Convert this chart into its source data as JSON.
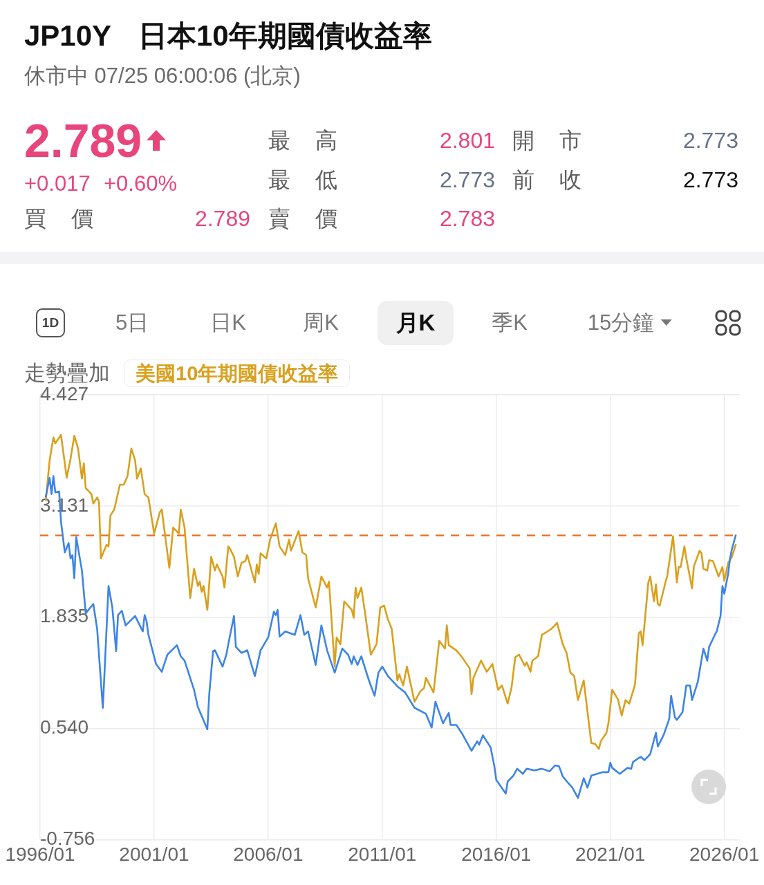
{
  "chart_data": [
    {
      "type": "other",
      "title": "JP10Y 日本10年期國債收益率",
      "subtitle": "休市中 07/25 06:00:06 (北京)",
      "annotations": [
        "2.789",
        "最 高",
        "2.801",
        "開 市",
        "2.773",
        "+0.017",
        "+0.60%",
        "最 低",
        "2.773",
        "前 收",
        "2.773",
        "買 價",
        "2.789",
        "賣 價",
        "2.783"
      ]
    },
    {
      "type": "line",
      "annotations": [
        "1D",
        "5日",
        "日K",
        "周K",
        "月K",
        "季K",
        "15分鐘"
      ],
      "legend_title": "走勢疊加",
      "legend": "top left",
      "grid": true,
      "marker": "none",
      "xlim": [
        "1996-01",
        "2026-09"
      ],
      "xticks": [
        {
          "value": "1996-01",
          "label": "1996/01"
        },
        {
          "value": "2001-01",
          "label": "2001/01"
        },
        {
          "value": "2006-01",
          "label": "2006/01"
        },
        {
          "value": "2011-01",
          "label": "2011/01"
        },
        {
          "value": "2016-01",
          "label": "2016/01"
        },
        {
          "value": "2021-01",
          "label": "2021/01"
        },
        {
          "value": "2026-01",
          "label": "2026/01"
        }
      ],
      "ylim": [
        -0.756,
        4.427
      ],
      "yticks": [
        -0.756,
        {
          "value": 0.54,
          "label": "0.540"
        },
        1.835,
        3.131,
        4.427
      ],
      "ref_lines": [
        {
          "axis": "y",
          "value": 2.789,
          "color": "#ec6d22",
          "line_style": "dashed"
        }
      ],
      "series": [
        {
          "color": "#3d84e6",
          "x": [
            "1996-04",
            "1996-06",
            "1996-07",
            "1996-08",
            "1996-09",
            "1996-11",
            "1996-12",
            "1997-02",
            "1997-04",
            "1997-05",
            "1997-06",
            "1997-07",
            "1997-08",
            "1997-11",
            "1998-01",
            "1998-05",
            "1998-07",
            "1998-10",
            "1998-11",
            "1999-01",
            "1999-03",
            "1999-05",
            "1999-06",
            "1999-08",
            "1999-10",
            "2000-03",
            "2000-07",
            "2000-08",
            "2000-09",
            "2000-10",
            "2001-02",
            "2001-05",
            "2001-08",
            "2002-01",
            "2002-03",
            "2002-05",
            "2002-10",
            "2002-12",
            "2003-05",
            "2003-06",
            "2003-08",
            "2003-09",
            "2004-01",
            "2004-03",
            "2004-04",
            "2004-07",
            "2004-08",
            "2004-11",
            "2005-02",
            "2005-06",
            "2005-09",
            "2006-01",
            "2006-04",
            "2006-05",
            "2006-06",
            "2006-07",
            "2006-10",
            "2007-03",
            "2007-06",
            "2007-08",
            "2007-10",
            "2008-02",
            "2008-05",
            "2008-08",
            "2008-12",
            "2009-04",
            "2009-07",
            "2009-09",
            "2009-10",
            "2009-12",
            "2010-02",
            "2010-06",
            "2010-09",
            "2010-11",
            "2011-01",
            "2011-04",
            "2011-09",
            "2012-01",
            "2012-06",
            "2012-12",
            "2013-03",
            "2013-05",
            "2013-09",
            "2013-12",
            "2014-01",
            "2014-04",
            "2014-07",
            "2014-12",
            "2015-03",
            "2015-04",
            "2015-06",
            "2015-10",
            "2015-12",
            "2016-01",
            "2016-06",
            "2016-07",
            "2016-10",
            "2016-12",
            "2017-03",
            "2017-05",
            "2017-09",
            "2018-01",
            "2018-05",
            "2018-08",
            "2018-10",
            "2018-12",
            "2019-03",
            "2019-05",
            "2019-08",
            "2019-11",
            "2020-01",
            "2020-03",
            "2020-06",
            "2020-09",
            "2020-12",
            "2021-01",
            "2021-02",
            "2021-06",
            "2021-10",
            "2021-12",
            "2022-01",
            "2022-05",
            "2022-07",
            "2022-10",
            "2023-01",
            "2023-02",
            "2023-05",
            "2023-08",
            "2023-09",
            "2023-11",
            "2023-12",
            "2024-03",
            "2024-05",
            "2024-07",
            "2024-08",
            "2024-11",
            "2025-02",
            "2025-04",
            "2025-05",
            "2025-08",
            "2025-09",
            "2025-11",
            "2025-12",
            "2026-01",
            "2026-03",
            "2026-04",
            "2026-05",
            "2026-07"
          ],
          "values": [
            3.24,
            3.46,
            3.27,
            3.48,
            3.29,
            3.3,
            2.95,
            2.59,
            2.7,
            2.52,
            2.56,
            2.29,
            2.77,
            2.38,
            1.88,
            1.99,
            1.7,
            0.78,
            1.24,
            2.2,
            1.95,
            1.44,
            1.86,
            1.91,
            1.74,
            1.85,
            1.67,
            1.86,
            1.79,
            1.63,
            1.29,
            1.2,
            1.4,
            1.51,
            1.38,
            1.33,
            0.99,
            0.79,
            0.53,
            0.94,
            1.44,
            1.45,
            1.26,
            1.4,
            1.52,
            1.85,
            1.49,
            1.42,
            1.45,
            1.15,
            1.45,
            1.6,
            1.9,
            1.86,
            1.92,
            1.61,
            1.67,
            1.63,
            1.86,
            1.63,
            1.67,
            1.28,
            1.74,
            1.45,
            1.19,
            1.47,
            1.4,
            1.29,
            1.38,
            1.28,
            1.38,
            1.1,
            0.92,
            1.19,
            1.26,
            1.15,
            1.03,
            0.96,
            0.78,
            0.71,
            0.55,
            0.85,
            0.6,
            0.72,
            0.58,
            0.58,
            0.48,
            0.28,
            0.39,
            0.35,
            0.46,
            0.32,
            0.1,
            -0.06,
            -0.22,
            -0.08,
            -0.01,
            0.07,
            0.01,
            0.07,
            0.05,
            0.07,
            0.04,
            0.11,
            0.1,
            -0.02,
            -0.1,
            -0.15,
            -0.27,
            -0.04,
            -0.15,
            -0.01,
            0.01,
            0.03,
            0.03,
            0.14,
            0.08,
            0.01,
            0.08,
            0.07,
            0.15,
            0.21,
            0.17,
            0.24,
            0.49,
            0.33,
            0.46,
            0.65,
            0.92,
            0.67,
            0.64,
            0.73,
            1.04,
            1.04,
            0.87,
            1.08,
            1.47,
            1.33,
            1.49,
            1.63,
            1.67,
            1.85,
            2.2,
            2.11,
            2.34,
            2.52,
            2.63,
            2.79
          ]
        },
        {
          "name": "美國10年期國債收益率",
          "color": "#d9a01e",
          "x": [
            "1996-04",
            "1996-06",
            "1996-08",
            "1996-09",
            "1996-12",
            "1997-03",
            "1997-05",
            "1997-07",
            "1997-09",
            "1997-11",
            "1997-12",
            "1998-01",
            "1998-04",
            "1998-05",
            "1998-07",
            "1998-08",
            "1998-09",
            "1998-12",
            "1999-01",
            "1999-02",
            "1999-04",
            "1999-07",
            "1999-09",
            "1999-11",
            "2000-01",
            "2000-03",
            "2000-04",
            "2000-06",
            "2000-08",
            "2000-10",
            "2001-01",
            "2001-04",
            "2001-05",
            "2001-09",
            "2001-11",
            "2002-02",
            "2002-03",
            "2002-05",
            "2002-08",
            "2002-10",
            "2002-12",
            "2003-01",
            "2003-02",
            "2003-03",
            "2003-05",
            "2003-07",
            "2003-09",
            "2003-10",
            "2004-01",
            "2004-02",
            "2004-04",
            "2004-05",
            "2004-07",
            "2004-09",
            "2004-11",
            "2005-01",
            "2005-02",
            "2005-06",
            "2005-07",
            "2005-08",
            "2005-09",
            "2005-12",
            "2006-02",
            "2006-05",
            "2006-07",
            "2006-10",
            "2006-12",
            "2007-01",
            "2007-05",
            "2007-07",
            "2007-09",
            "2007-10",
            "2008-02",
            "2008-05",
            "2008-08",
            "2008-09",
            "2008-12",
            "2009-01",
            "2009-03",
            "2009-05",
            "2009-09",
            "2009-10",
            "2009-11",
            "2009-12",
            "2010-02",
            "2010-04",
            "2010-07",
            "2010-10",
            "2010-12",
            "2011-02",
            "2011-04",
            "2011-06",
            "2011-09",
            "2011-10",
            "2011-12",
            "2012-02",
            "2012-06",
            "2012-09",
            "2012-11",
            "2012-12",
            "2013-04",
            "2013-07",
            "2013-10",
            "2013-11",
            "2013-12",
            "2014-04",
            "2014-07",
            "2014-11",
            "2014-12",
            "2015-01",
            "2015-05",
            "2015-08",
            "2015-11",
            "2016-02",
            "2016-04",
            "2016-07",
            "2016-09",
            "2016-11",
            "2017-01",
            "2017-04",
            "2017-05",
            "2017-07",
            "2017-08",
            "2017-11",
            "2018-01",
            "2018-04",
            "2018-06",
            "2018-09",
            "2018-12",
            "2019-02",
            "2019-04",
            "2019-06",
            "2019-08",
            "2019-11",
            "2020-03",
            "2020-05",
            "2020-07",
            "2020-08",
            "2020-11",
            "2020-12",
            "2021-02",
            "2021-05",
            "2021-07",
            "2021-09",
            "2021-11",
            "2022-02",
            "2022-04",
            "2022-05",
            "2022-06",
            "2022-09",
            "2022-10",
            "2022-11",
            "2022-12",
            "2023-01",
            "2023-02",
            "2023-03",
            "2023-06",
            "2023-07",
            "2023-10",
            "2023-11",
            "2023-12",
            "2024-01",
            "2024-02",
            "2024-04",
            "2024-05",
            "2024-07",
            "2024-08",
            "2024-09",
            "2024-12",
            "2025-01",
            "2025-02",
            "2025-04",
            "2025-05",
            "2025-07",
            "2025-10",
            "2025-12",
            "2026-01",
            "2026-03",
            "2026-05",
            "2026-07"
          ],
          "values": [
            3.2,
            3.66,
            3.93,
            3.86,
            3.96,
            3.46,
            3.68,
            3.95,
            3.8,
            3.45,
            3.63,
            3.34,
            3.27,
            3.16,
            3.23,
            3.18,
            2.52,
            2.68,
            2.66,
            3.02,
            3.09,
            3.38,
            3.38,
            3.48,
            3.8,
            3.66,
            3.45,
            3.57,
            3.27,
            3.23,
            2.81,
            3.06,
            3.09,
            2.41,
            2.88,
            2.81,
            3.09,
            2.88,
            2.06,
            2.4,
            2.2,
            2.25,
            2.13,
            2.2,
            1.92,
            2.54,
            2.38,
            2.45,
            2.31,
            2.18,
            2.66,
            2.63,
            2.54,
            2.31,
            2.47,
            2.49,
            2.56,
            2.24,
            2.45,
            2.34,
            2.58,
            2.52,
            2.74,
            2.93,
            2.66,
            2.56,
            2.74,
            2.61,
            2.84,
            2.59,
            2.56,
            2.29,
            1.95,
            2.31,
            2.18,
            2.25,
            1.26,
            1.6,
            1.52,
            2.02,
            1.92,
            1.83,
            2.18,
            2.06,
            2.18,
            1.88,
            1.4,
            1.52,
            1.95,
            1.97,
            1.81,
            1.7,
            1.1,
            1.17,
            1.04,
            1.26,
            0.85,
            0.97,
            1.01,
            1.13,
            0.96,
            1.56,
            1.47,
            1.74,
            1.51,
            1.45,
            1.37,
            1.24,
            0.94,
            1.13,
            1.33,
            1.2,
            1.29,
            0.99,
            1.04,
            0.83,
            1.01,
            1.37,
            1.4,
            1.27,
            1.31,
            1.2,
            1.33,
            1.38,
            1.63,
            1.67,
            1.7,
            1.77,
            1.52,
            1.42,
            1.19,
            1.15,
            0.87,
            1.1,
            0.37,
            0.36,
            0.3,
            0.39,
            0.49,
            0.6,
            0.99,
            0.88,
            0.69,
            0.87,
            0.83,
            1.05,
            1.65,
            1.67,
            1.51,
            2.24,
            2.31,
            2.16,
            2.02,
            2.22,
            1.99,
            1.97,
            2.24,
            2.32,
            2.78,
            2.52,
            2.24,
            2.42,
            2.42,
            2.66,
            2.52,
            2.29,
            2.17,
            2.43,
            2.61,
            2.58,
            2.4,
            2.38,
            2.5,
            2.49,
            2.31,
            2.42,
            2.26,
            2.47,
            2.54,
            2.68
          ]
        }
      ]
    }
  ]
}
